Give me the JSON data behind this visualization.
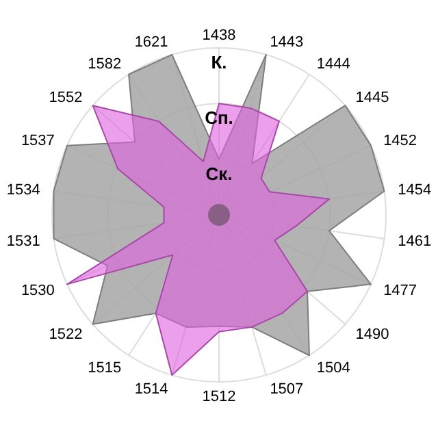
{
  "chart_data": {
    "type": "radar",
    "categories": [
      "1438",
      "1443",
      "1444",
      "1445",
      "1452",
      "1454",
      "1461",
      "1477",
      "1490",
      "1504",
      "1507",
      "1512",
      "1514",
      "1515",
      "1522",
      "1530",
      "1531",
      "1534",
      "1537",
      "1552",
      "1582",
      "1621"
    ],
    "series": [
      {
        "color": "#a6a6a6",
        "values": [
          1.0,
          3.0,
          1.1,
          3.0,
          3.0,
          3.0,
          2.0,
          3.0,
          2.1,
          3.0,
          2.1,
          2.0,
          2.1,
          2.1,
          3.0,
          2.2,
          3.0,
          3.0,
          3.0,
          2.0,
          3.0,
          3.0
        ]
      },
      {
        "color": "#e060e0",
        "values": [
          2.0,
          2.0,
          2.0,
          1.0,
          1.0,
          2.0,
          1.4,
          1.1,
          2.1,
          2.1,
          2.1,
          2.1,
          3.0,
          2.1,
          1.1,
          3.0,
          1.0,
          1.0,
          2.0,
          3.0,
          2.0,
          1.0
        ]
      }
    ],
    "ylim": [
      0,
      3
    ],
    "yticks": [
      {
        "value": 1,
        "label": "Ск."
      },
      {
        "value": 2,
        "label": "Сп."
      },
      {
        "value": 3,
        "label": "К."
      }
    ],
    "grid": true
  }
}
